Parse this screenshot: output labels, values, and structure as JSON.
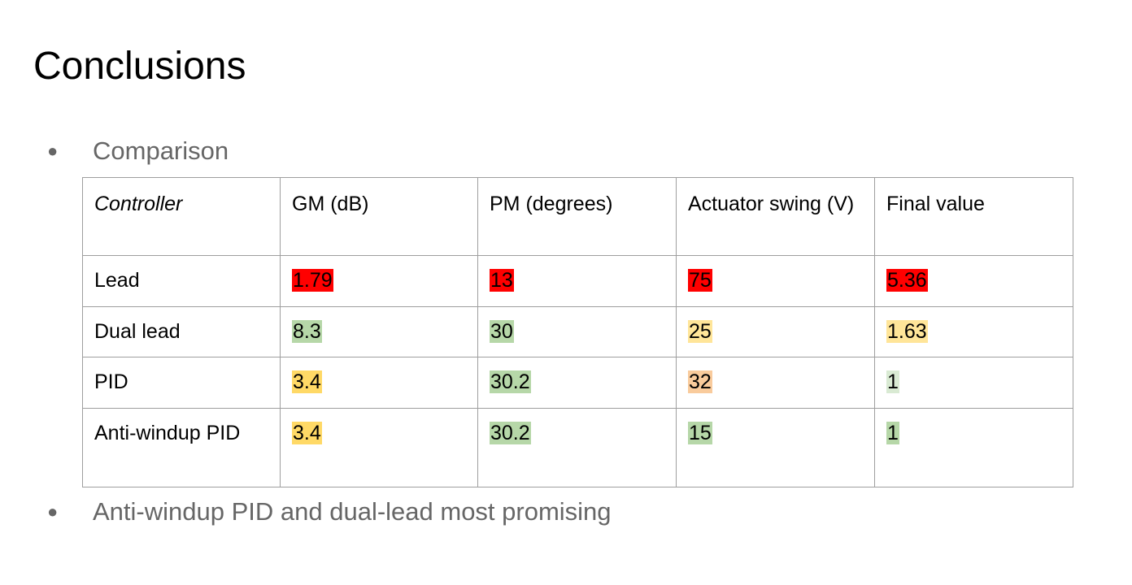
{
  "title": "Conclusions",
  "bullets": [
    "Comparison",
    "Anti-windup PID and dual-lead most promising"
  ],
  "table": {
    "headers": [
      "Controller",
      "GM (dB)",
      "PM (degrees)",
      "Actuator swing (V)",
      "Final value"
    ],
    "rows": [
      {
        "controller": "Lead",
        "cells": [
          {
            "value": "1.79",
            "color": "#ff0000"
          },
          {
            "value": "13",
            "color": "#ff0000"
          },
          {
            "value": "75",
            "color": "#ff0000"
          },
          {
            "value": "5.36",
            "color": "#ff0000"
          }
        ]
      },
      {
        "controller": "Dual lead",
        "cells": [
          {
            "value": "8.3",
            "color": "#b6d7a8"
          },
          {
            "value": "30",
            "color": "#b6d7a8"
          },
          {
            "value": "25",
            "color": "#ffe599"
          },
          {
            "value": "1.63",
            "color": "#ffe599"
          }
        ]
      },
      {
        "controller": "PID",
        "cells": [
          {
            "value": "3.4",
            "color": "#ffd966"
          },
          {
            "value": "30.2",
            "color": "#b6d7a8"
          },
          {
            "value": "32",
            "color": "#f9cb9c"
          },
          {
            "value": "1",
            "color": "#d9ead3"
          }
        ]
      },
      {
        "controller": "Anti-windup PID",
        "cells": [
          {
            "value": "3.4",
            "color": "#ffd966"
          },
          {
            "value": "30.2",
            "color": "#b6d7a8"
          },
          {
            "value": "15",
            "color": "#b6d7a8"
          },
          {
            "value": "1",
            "color": "#b6d7a8"
          }
        ]
      }
    ]
  }
}
